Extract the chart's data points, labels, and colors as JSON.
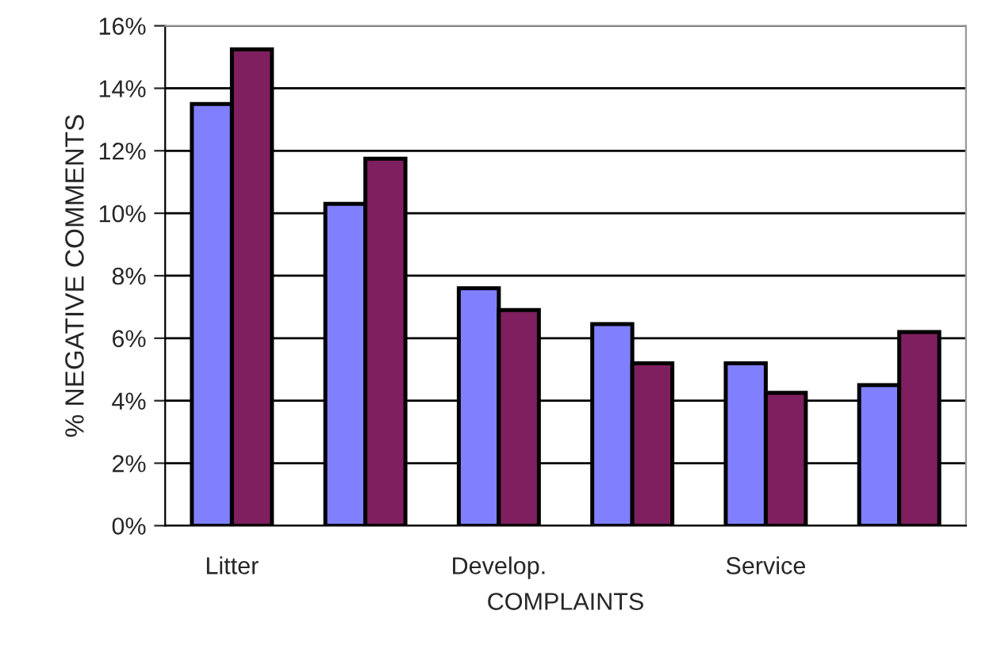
{
  "chart_data": {
    "type": "bar",
    "xlabel": "COMPLAINTS",
    "ylabel": "% NEGATIVE COMMENTS",
    "categories": [
      "Litter",
      null,
      "Develop.",
      null,
      "Service",
      null
    ],
    "series": [
      {
        "color": "#8080ff",
        "values": [
          13.5,
          10.3,
          7.6,
          6.45,
          5.2,
          4.5
        ]
      },
      {
        "color": "#7f1f5f",
        "values": [
          15.25,
          11.75,
          6.9,
          5.2,
          4.25,
          6.2
        ]
      }
    ],
    "ylim": [
      0,
      16
    ],
    "yticks": [
      {
        "value": 0,
        "label": "0%"
      },
      {
        "value": 2,
        "label": "2%"
      },
      {
        "value": 4,
        "label": "4%"
      },
      {
        "value": 6,
        "label": "6%"
      },
      {
        "value": 8,
        "label": "8%"
      },
      {
        "value": 10,
        "label": "10%"
      },
      {
        "value": 12,
        "label": "12%"
      },
      {
        "value": 14,
        "label": "14%"
      },
      {
        "value": 16,
        "label": "16%"
      }
    ],
    "grid": "y"
  }
}
